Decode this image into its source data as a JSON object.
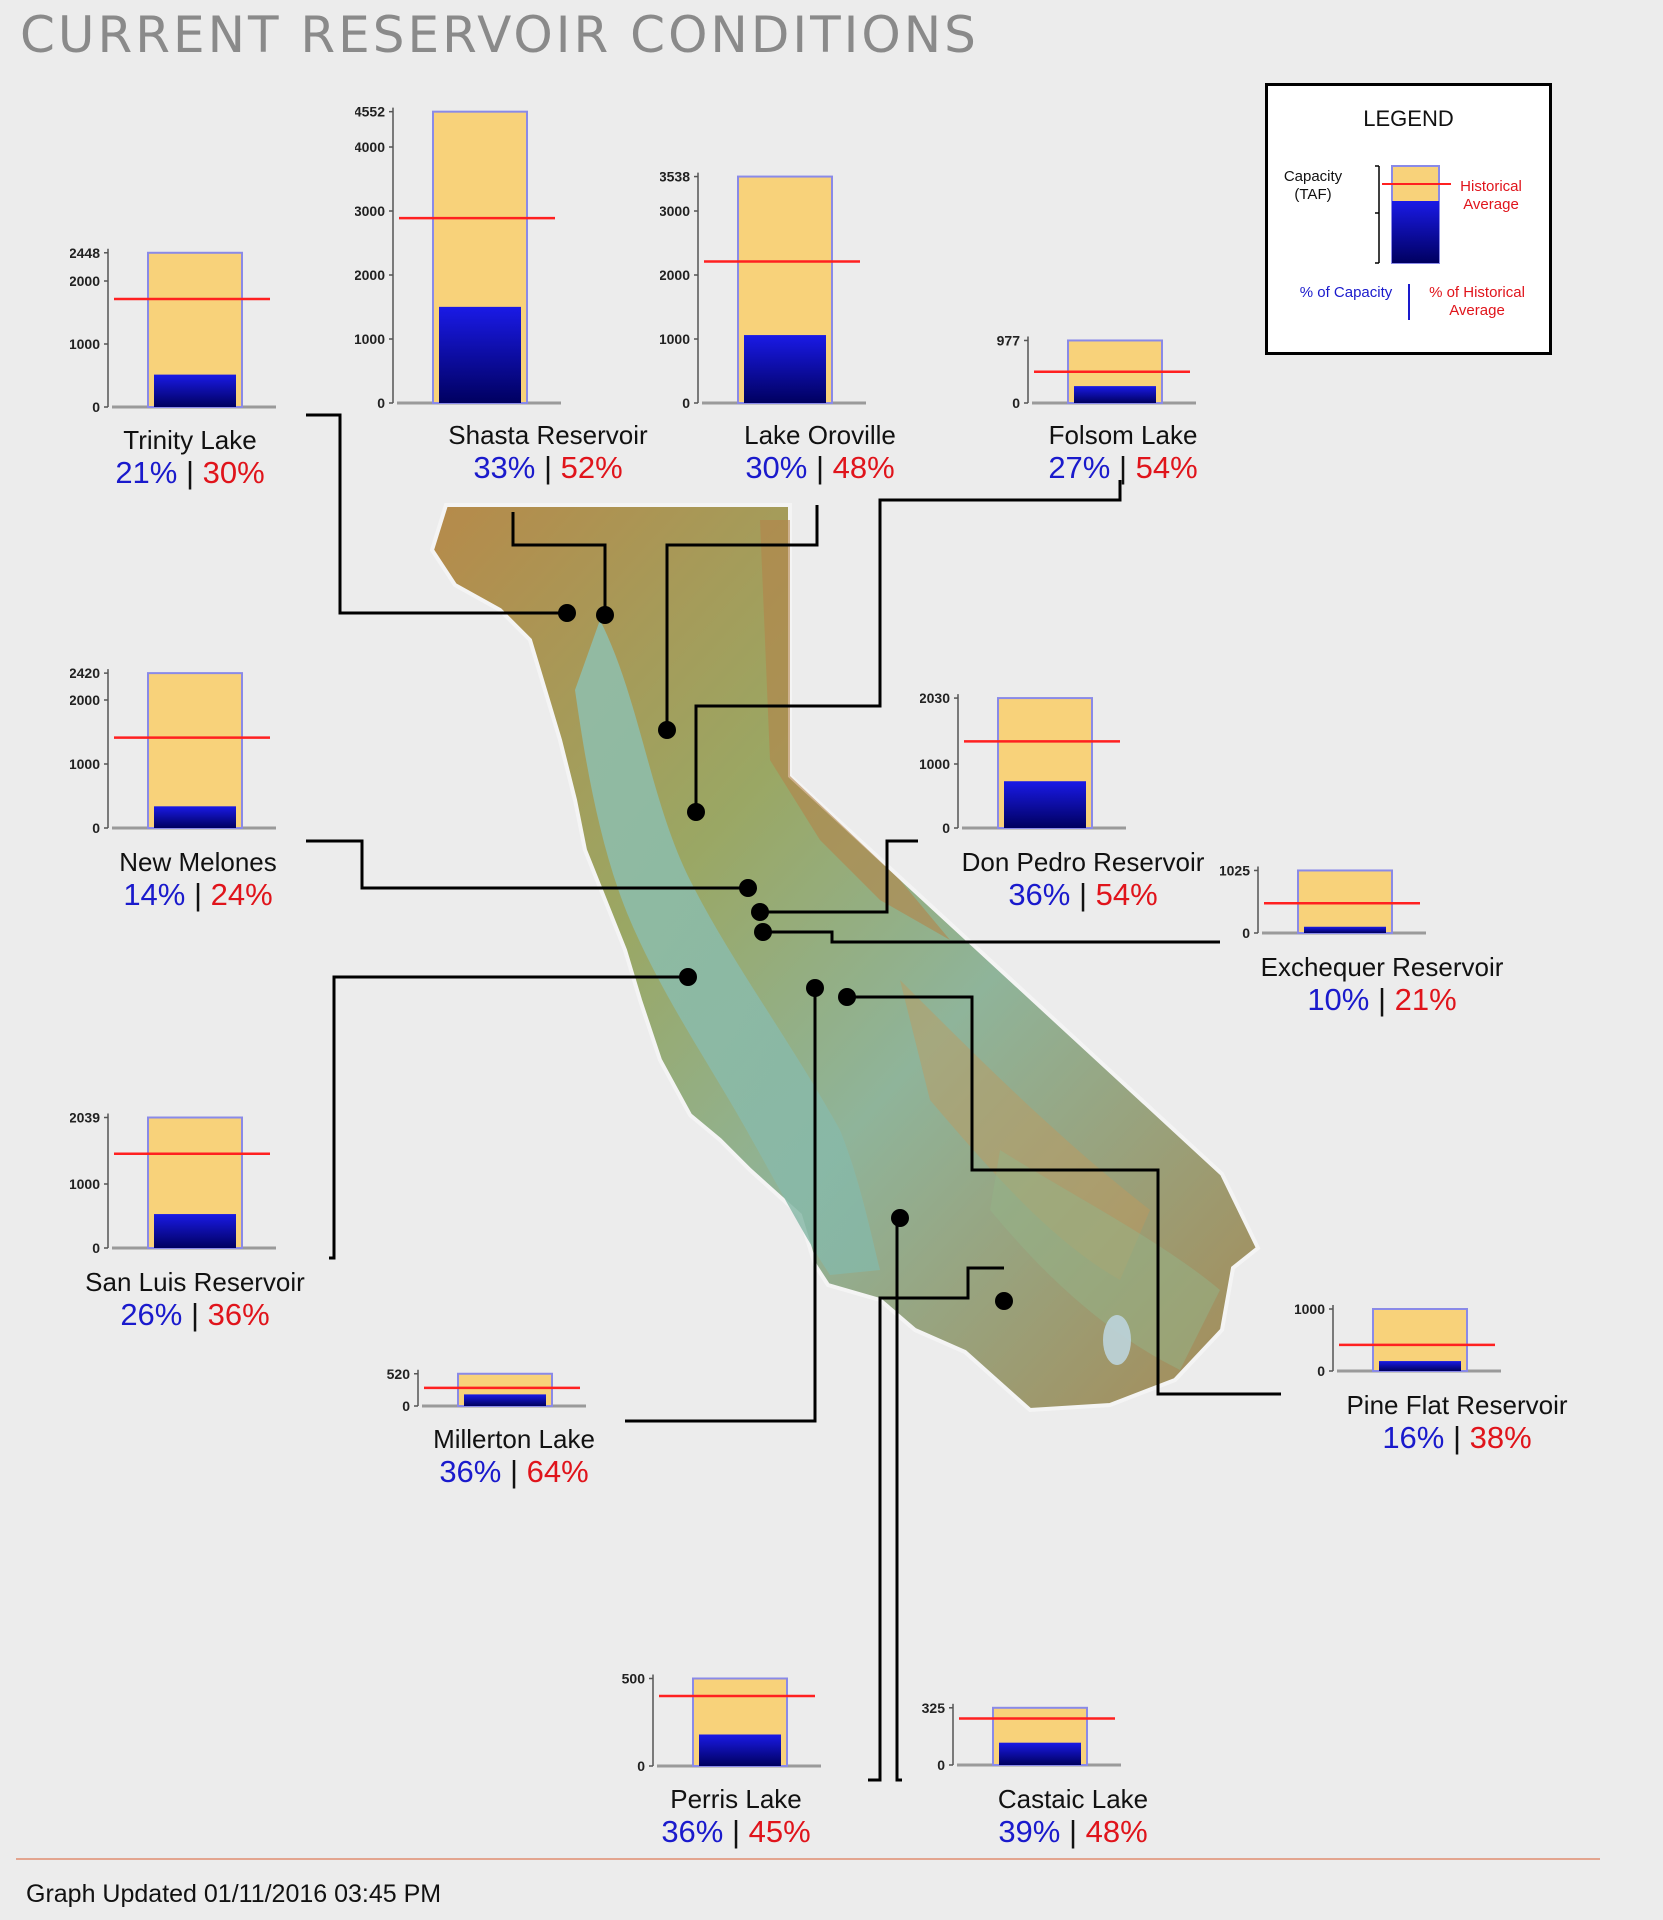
{
  "page": {
    "title": "CURRENT RESERVOIR CONDITIONS",
    "updated": "Graph Updated 01/11/2016 03:45 PM"
  },
  "legend": {
    "title": "LEGEND",
    "capacity_label": "Capacity (TAF)",
    "historical_label": "Historical Average",
    "pct_capacity_label": "% of Capacity",
    "pct_historical_label": "% of Historical Average"
  },
  "colors": {
    "capacity_fill": "#f8d27a",
    "storage_top": "#1a1ae6",
    "storage_bottom": "#000060",
    "historical_line": "#ff2020",
    "capacity_outline": "#8a8ae8",
    "pct_capacity_text": "#1a1acc",
    "pct_historical_text": "#e0141b",
    "connector": "#000000"
  },
  "chart_data": {
    "type": "bar",
    "unit": "TAF",
    "reservoirs": [
      {
        "name": "Trinity Lake",
        "capacity": 2448,
        "ticks": [
          0,
          1000,
          2000,
          2448
        ],
        "pct_capacity": 21,
        "pct_avg": 30,
        "pct_capacity_text": "21%",
        "pct_avg_text": "30%"
      },
      {
        "name": "Shasta Reservoir",
        "capacity": 4552,
        "ticks": [
          0,
          1000,
          2000,
          3000,
          4000,
          4552
        ],
        "pct_capacity": 33,
        "pct_avg": 52,
        "pct_capacity_text": "33%",
        "pct_avg_text": "52%"
      },
      {
        "name": "Lake Oroville",
        "capacity": 3538,
        "ticks": [
          0,
          1000,
          2000,
          3000,
          3538
        ],
        "pct_capacity": 30,
        "pct_avg": 48,
        "pct_capacity_text": "30%",
        "pct_avg_text": "48%"
      },
      {
        "name": "Folsom Lake",
        "capacity": 977,
        "ticks": [
          0,
          977
        ],
        "pct_capacity": 27,
        "pct_avg": 54,
        "pct_capacity_text": "27%",
        "pct_avg_text": "54%"
      },
      {
        "name": "New Melones",
        "capacity": 2420,
        "ticks": [
          0,
          1000,
          2000,
          2420
        ],
        "pct_capacity": 14,
        "pct_avg": 24,
        "pct_capacity_text": "14%",
        "pct_avg_text": "24%"
      },
      {
        "name": "Don Pedro Reservoir",
        "capacity": 2030,
        "ticks": [
          0,
          1000,
          2030
        ],
        "pct_capacity": 36,
        "pct_avg": 54,
        "pct_capacity_text": "36%",
        "pct_avg_text": "54%"
      },
      {
        "name": "Exchequer Reservoir",
        "capacity": 1025,
        "ticks": [
          0,
          1025
        ],
        "pct_capacity": 10,
        "pct_avg": 21,
        "pct_capacity_text": "10%",
        "pct_avg_text": "21%"
      },
      {
        "name": "San Luis Reservoir",
        "capacity": 2039,
        "ticks": [
          0,
          1000,
          2039
        ],
        "pct_capacity": 26,
        "pct_avg": 36,
        "pct_capacity_text": "26%",
        "pct_avg_text": "36%"
      },
      {
        "name": "Millerton Lake",
        "capacity": 520,
        "ticks": [
          0,
          520
        ],
        "pct_capacity": 36,
        "pct_avg": 64,
        "pct_capacity_text": "36%",
        "pct_avg_text": "64%"
      },
      {
        "name": "Pine Flat Reservoir",
        "capacity": 1000,
        "ticks": [
          0,
          1000
        ],
        "pct_capacity": 16,
        "pct_avg": 38,
        "pct_capacity_text": "16%",
        "pct_avg_text": "38%"
      },
      {
        "name": "Perris Lake",
        "capacity": 500,
        "ticks": [
          0,
          500
        ],
        "pct_capacity": 36,
        "pct_avg": 45,
        "pct_capacity_text": "36%",
        "pct_avg_text": "45%"
      },
      {
        "name": "Castaic Lake",
        "capacity": 325,
        "ticks": [
          0,
          325
        ],
        "pct_capacity": 39,
        "pct_avg": 48,
        "pct_capacity_text": "39%",
        "pct_avg_text": "48%"
      }
    ]
  }
}
